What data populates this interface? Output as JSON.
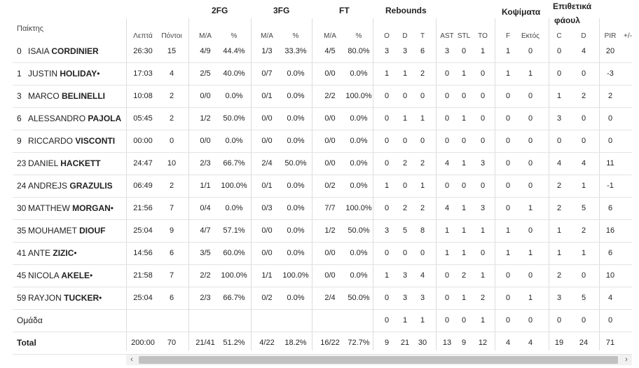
{
  "headers": {
    "player": "Παίκτης",
    "groups": {
      "fg2": "2FG",
      "fg3": "3FG",
      "ft": "FT",
      "rebounds": "Rebounds",
      "blocks": "Κοψίματα",
      "off_fouls_line1": "Επιθετικά",
      "off_fouls_line2": "φάουλ"
    },
    "columns": [
      "Λεπτά",
      "Πόντοι",
      "M/A",
      "%",
      "M/A",
      "%",
      "M/A",
      "%",
      "O",
      "D",
      "T",
      "AST",
      "STL",
      "TO",
      "F",
      "Εκτός",
      "C",
      "D",
      "PIR",
      "+/-"
    ]
  },
  "rows": [
    {
      "num": "0",
      "first": "ISAIA",
      "last": "CORDINIER",
      "mark": "",
      "stats": [
        "26:30",
        "15",
        "4/9",
        "44.4%",
        "1/3",
        "33.3%",
        "4/5",
        "80.0%",
        "3",
        "3",
        "6",
        "3",
        "0",
        "1",
        "1",
        "0",
        "0",
        "4",
        "20",
        ""
      ]
    },
    {
      "num": "1",
      "first": "JUSTIN",
      "last": "HOLIDAY",
      "mark": "•",
      "stats": [
        "17:03",
        "4",
        "2/5",
        "40.0%",
        "0/7",
        "0.0%",
        "0/0",
        "0.0%",
        "1",
        "1",
        "2",
        "0",
        "1",
        "0",
        "1",
        "1",
        "0",
        "0",
        "-3",
        ""
      ]
    },
    {
      "num": "3",
      "first": "MARCO",
      "last": "BELINELLI",
      "mark": "",
      "stats": [
        "10:08",
        "2",
        "0/0",
        "0.0%",
        "0/1",
        "0.0%",
        "2/2",
        "100.0%",
        "0",
        "0",
        "0",
        "0",
        "0",
        "0",
        "0",
        "0",
        "1",
        "2",
        "2",
        ""
      ]
    },
    {
      "num": "6",
      "first": "ALESSANDRO",
      "last": "PAJOLA",
      "mark": "",
      "stats": [
        "05:45",
        "2",
        "1/2",
        "50.0%",
        "0/0",
        "0.0%",
        "0/0",
        "0.0%",
        "0",
        "1",
        "1",
        "0",
        "1",
        "0",
        "0",
        "0",
        "3",
        "0",
        "0",
        ""
      ]
    },
    {
      "num": "9",
      "first": "RICCARDO",
      "last": "VISCONTI",
      "mark": "",
      "stats": [
        "00:00",
        "0",
        "0/0",
        "0.0%",
        "0/0",
        "0.0%",
        "0/0",
        "0.0%",
        "0",
        "0",
        "0",
        "0",
        "0",
        "0",
        "0",
        "0",
        "0",
        "0",
        "0",
        ""
      ]
    },
    {
      "num": "23",
      "first": "DANIEL",
      "last": "HACKETT",
      "mark": "",
      "stats": [
        "24:47",
        "10",
        "2/3",
        "66.7%",
        "2/4",
        "50.0%",
        "0/0",
        "0.0%",
        "0",
        "2",
        "2",
        "4",
        "1",
        "3",
        "0",
        "0",
        "4",
        "4",
        "11",
        ""
      ]
    },
    {
      "num": "24",
      "first": "ANDREJS",
      "last": "GRAZULIS",
      "mark": "",
      "stats": [
        "06:49",
        "2",
        "1/1",
        "100.0%",
        "0/1",
        "0.0%",
        "0/2",
        "0.0%",
        "1",
        "0",
        "1",
        "0",
        "0",
        "0",
        "0",
        "0",
        "2",
        "1",
        "-1",
        ""
      ]
    },
    {
      "num": "30",
      "first": "MATTHEW",
      "last": "MORGAN",
      "mark": "•",
      "stats": [
        "21:56",
        "7",
        "0/4",
        "0.0%",
        "0/3",
        "0.0%",
        "7/7",
        "100.0%",
        "0",
        "2",
        "2",
        "4",
        "1",
        "3",
        "0",
        "1",
        "2",
        "5",
        "6",
        ""
      ]
    },
    {
      "num": "35",
      "first": "MOUHAMET",
      "last": "DIOUF",
      "mark": "",
      "stats": [
        "25:04",
        "9",
        "4/7",
        "57.1%",
        "0/0",
        "0.0%",
        "1/2",
        "50.0%",
        "3",
        "5",
        "8",
        "1",
        "1",
        "1",
        "1",
        "0",
        "1",
        "2",
        "16",
        ""
      ]
    },
    {
      "num": "41",
      "first": "ANTE",
      "last": "ZIZIC",
      "mark": "•",
      "stats": [
        "14:56",
        "6",
        "3/5",
        "60.0%",
        "0/0",
        "0.0%",
        "0/0",
        "0.0%",
        "0",
        "0",
        "0",
        "1",
        "1",
        "0",
        "1",
        "1",
        "1",
        "1",
        "6",
        ""
      ]
    },
    {
      "num": "45",
      "first": "NICOLA",
      "last": "AKELE",
      "mark": "•",
      "stats": [
        "21:58",
        "7",
        "2/2",
        "100.0%",
        "1/1",
        "100.0%",
        "0/0",
        "0.0%",
        "1",
        "3",
        "4",
        "0",
        "2",
        "1",
        "0",
        "0",
        "2",
        "0",
        "10",
        ""
      ]
    },
    {
      "num": "59",
      "first": "RAYJON",
      "last": "TUCKER",
      "mark": "•",
      "stats": [
        "25:04",
        "6",
        "2/3",
        "66.7%",
        "0/2",
        "0.0%",
        "2/4",
        "50.0%",
        "0",
        "3",
        "3",
        "0",
        "1",
        "2",
        "0",
        "1",
        "3",
        "5",
        "4",
        ""
      ]
    }
  ],
  "team_row": {
    "label": "Ομάδα",
    "stats": [
      "",
      "",
      "",
      "",
      "",
      "",
      "",
      "",
      "0",
      "1",
      "1",
      "0",
      "0",
      "1",
      "0",
      "0",
      "0",
      "0",
      "0",
      ""
    ]
  },
  "total_row": {
    "label": "Total",
    "stats": [
      "200:00",
      "70",
      "21/41",
      "51.2%",
      "4/22",
      "18.2%",
      "16/22",
      "72.7%",
      "9",
      "21",
      "30",
      "13",
      "9",
      "12",
      "4",
      "4",
      "19",
      "24",
      "71",
      ""
    ]
  },
  "scrollbar": {
    "left_arrow": "‹",
    "right_arrow": "›"
  }
}
